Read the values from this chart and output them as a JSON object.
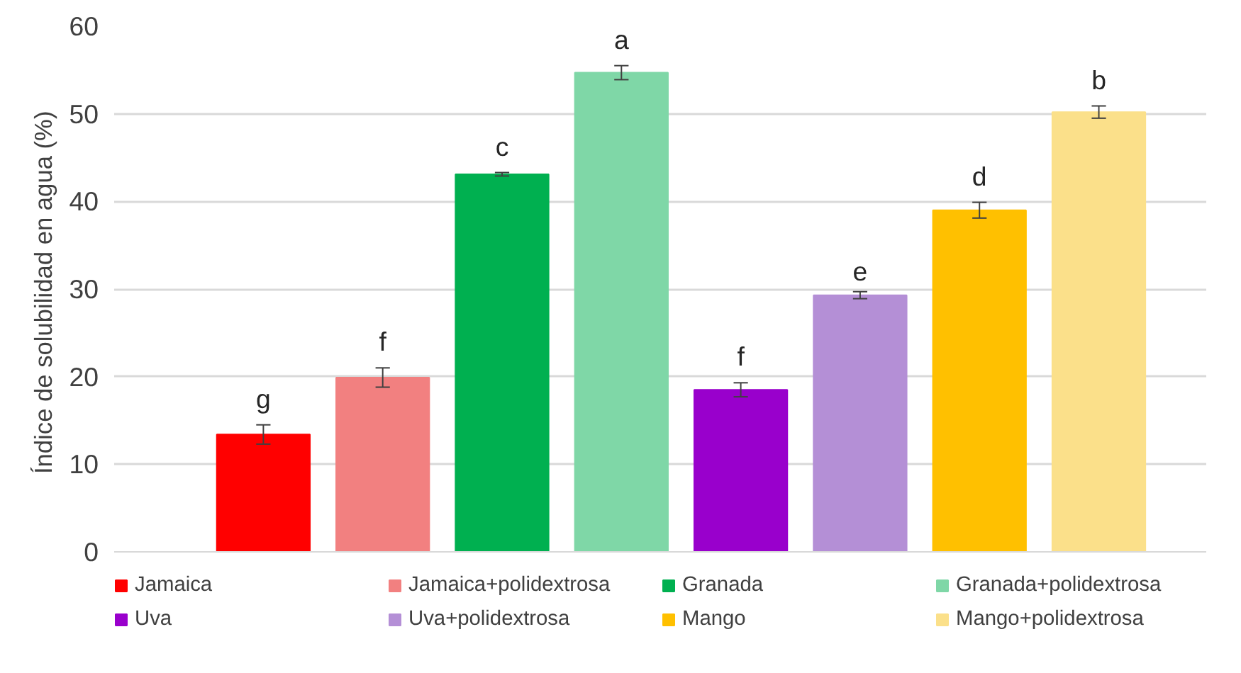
{
  "chart_data": {
    "type": "bar",
    "ylabel": "Índice de solubilidad  en agua (%)",
    "categories": [
      null
    ],
    "ylim": [
      0,
      60
    ],
    "yticks": [
      0,
      10,
      20,
      30,
      40,
      50,
      60
    ],
    "grid": "y",
    "legend": "bottom",
    "series": [
      {
        "name": "Jamaica",
        "color": "#ff0000",
        "values": [
          13.4
        ],
        "errors": [
          1.1
        ],
        "value_labels": [
          "g"
        ]
      },
      {
        "name": "Jamaica+polidextrosa",
        "color": "#f28080",
        "values": [
          19.9
        ],
        "errors": [
          1.1
        ],
        "value_labels": [
          "f"
        ]
      },
      {
        "name": "Granada",
        "color": "#00b050",
        "values": [
          43.1
        ],
        "errors": [
          0.2
        ],
        "value_labels": [
          "c"
        ]
      },
      {
        "name": "Granada+polidextrosa",
        "color": "#7fd7a7",
        "values": [
          54.7
        ],
        "errors": [
          0.8
        ],
        "value_labels": [
          "a"
        ]
      },
      {
        "name": "Uva",
        "color": "#9900cc",
        "values": [
          18.5
        ],
        "errors": [
          0.8
        ],
        "value_labels": [
          "f"
        ]
      },
      {
        "name": "Uva+polidextrosa",
        "color": "#b48fd6",
        "values": [
          29.3
        ],
        "errors": [
          0.4
        ],
        "value_labels": [
          "e"
        ]
      },
      {
        "name": "Mango",
        "color": "#ffc000",
        "values": [
          39.0
        ],
        "errors": [
          0.9
        ],
        "value_labels": [
          "d"
        ]
      },
      {
        "name": "Mango+polidextrosa",
        "color": "#fbe08a",
        "values": [
          50.2
        ],
        "errors": [
          0.7
        ],
        "value_labels": [
          "b"
        ]
      }
    ]
  }
}
